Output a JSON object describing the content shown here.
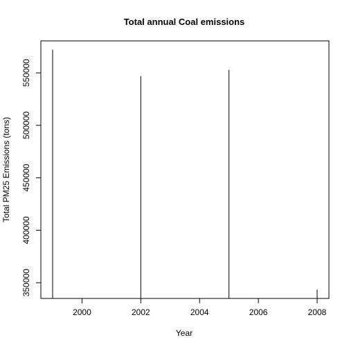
{
  "chart_data": {
    "type": "line",
    "plot_type": "h",
    "title": "Total annual Coal emissions",
    "xlabel": "Year",
    "ylabel": "Total PM25 Emissions (tons)",
    "x": [
      1999,
      2002,
      2005,
      2008
    ],
    "values": [
      572126,
      546789,
      552881,
      343432
    ],
    "xlim": [
      1998.6,
      2008.4
    ],
    "ylim": [
      335000,
      580500
    ],
    "xticks": [
      2000,
      2002,
      2004,
      2006,
      2008
    ],
    "yticks": [
      350000,
      400000,
      450000,
      500000,
      550000
    ],
    "xtick_labels": [
      "2000",
      "2002",
      "2004",
      "2006",
      "2008"
    ],
    "ytick_labels": [
      "350000",
      "400000",
      "450000",
      "500000",
      "550000"
    ],
    "grid": false,
    "legend": "none",
    "colors": {
      "line": "#000000",
      "axis": "#000000",
      "background": "#ffffff"
    }
  }
}
